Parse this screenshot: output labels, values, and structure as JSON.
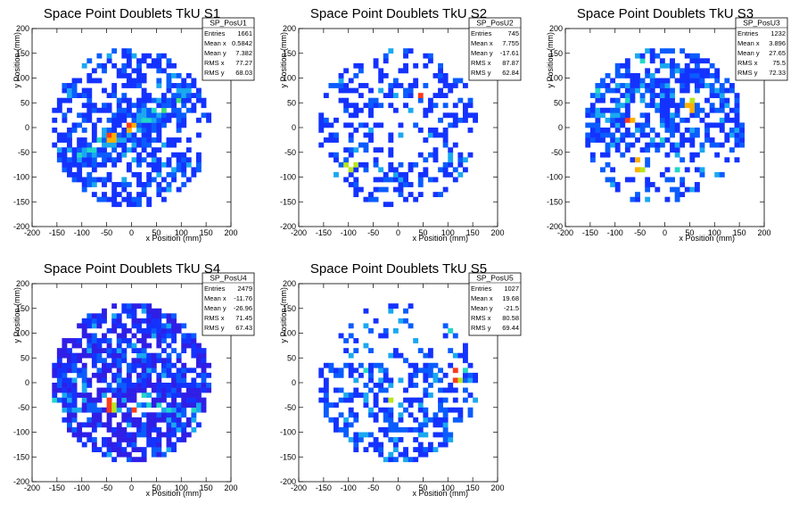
{
  "chart_data": [
    {
      "type": "heatmap",
      "title": "Space Point Doublets TkU S1",
      "xlabel": "x Position (mm)",
      "ylabel": "y Position (mm)",
      "xlim": [
        -200,
        200
      ],
      "ylim": [
        -200,
        200
      ],
      "xticks": [
        -200,
        -150,
        -100,
        -50,
        0,
        50,
        100,
        150,
        200
      ],
      "yticks": [
        -200,
        -150,
        -100,
        -50,
        0,
        50,
        100,
        150,
        200
      ],
      "stats": {
        "name": "SP_PosU1",
        "rows": [
          [
            "Entries",
            "1661"
          ],
          [
            "Mean x",
            "0.5842"
          ],
          [
            "Mean y",
            "7.382"
          ],
          [
            "RMS x",
            "77.27"
          ],
          [
            "RMS y",
            "68.03"
          ]
        ]
      },
      "pattern": "diagonal",
      "hotspots": [
        [
          -2,
          5
        ],
        [
          -40,
          -20
        ]
      ],
      "seed": 11
    },
    {
      "type": "heatmap",
      "title": "Space Point Doublets TkU S2",
      "xlabel": "x Position (mm)",
      "ylabel": "y Position (mm)",
      "xlim": [
        -200,
        200
      ],
      "ylim": [
        -200,
        200
      ],
      "xticks": [
        -200,
        -150,
        -100,
        -50,
        0,
        50,
        100,
        150,
        200
      ],
      "yticks": [
        -200,
        -150,
        -100,
        -50,
        0,
        50,
        100,
        150,
        200
      ],
      "stats": {
        "name": "SP_PosU2",
        "rows": [
          [
            "Entries",
            "745"
          ],
          [
            "Mean x",
            "7.755"
          ],
          [
            "Mean y",
            "-17.61"
          ],
          [
            "RMS x",
            "87.87"
          ],
          [
            "RMS y",
            "62.84"
          ]
        ]
      },
      "pattern": "sparse",
      "hotspots": [
        [
          45,
          75
        ],
        [
          -95,
          -75
        ]
      ],
      "seed": 23
    },
    {
      "type": "heatmap",
      "title": "Space Point Doublets TkU S3",
      "xlabel": "x Position (mm)",
      "ylabel": "y Position (mm)",
      "xlim": [
        -200,
        200
      ],
      "ylim": [
        -200,
        200
      ],
      "xticks": [
        -200,
        -150,
        -100,
        -50,
        0,
        50,
        100,
        150,
        200
      ],
      "yticks": [
        -200,
        -150,
        -100,
        -50,
        0,
        50,
        100,
        150,
        200
      ],
      "stats": {
        "name": "SP_PosU3",
        "rows": [
          [
            "Entries",
            "1232"
          ],
          [
            "Mean x",
            "3.896"
          ],
          [
            "Mean y",
            "27.65"
          ],
          [
            "RMS x",
            "75.5"
          ],
          [
            "RMS y",
            "72.33"
          ]
        ]
      },
      "pattern": "upper",
      "hotspots": [
        [
          -65,
          15
        ],
        [
          -50,
          -75
        ],
        [
          50,
          45
        ]
      ],
      "seed": 37
    },
    {
      "type": "heatmap",
      "title": "Space Point Doublets TkU S4",
      "xlabel": "x Position (mm)",
      "ylabel": "y Position (mm)",
      "xlim": [
        -200,
        200
      ],
      "ylim": [
        -200,
        200
      ],
      "xticks": [
        -200,
        -150,
        -100,
        -50,
        0,
        50,
        100,
        150,
        200
      ],
      "yticks": [
        -200,
        -150,
        -100,
        -50,
        0,
        50,
        100,
        150,
        200
      ],
      "stats": {
        "name": "SP_PosU4",
        "rows": [
          [
            "Entries",
            "2479"
          ],
          [
            "Mean x",
            "-11.76"
          ],
          [
            "Mean y",
            "-26.96"
          ],
          [
            "RMS x",
            "71.45"
          ],
          [
            "RMS y",
            "67.43"
          ]
        ]
      },
      "pattern": "dense",
      "hotspots": [
        [
          -40,
          -45
        ],
        [
          10,
          -60
        ]
      ],
      "seed": 41
    },
    {
      "type": "heatmap",
      "title": "Space Point Doublets TkU S5",
      "xlabel": "x Position (mm)",
      "ylabel": "y Position (mm)",
      "xlim": [
        -200,
        200
      ],
      "ylim": [
        -200,
        200
      ],
      "xticks": [
        -200,
        -150,
        -100,
        -50,
        0,
        50,
        100,
        150,
        200
      ],
      "yticks": [
        -200,
        -150,
        -100,
        -50,
        0,
        50,
        100,
        150,
        200
      ],
      "stats": {
        "name": "SP_PosU5",
        "rows": [
          [
            "Entries",
            "1027"
          ],
          [
            "Mean x",
            "19.68"
          ],
          [
            "Mean y",
            "-21.5"
          ],
          [
            "RMS x",
            "80.58"
          ],
          [
            "RMS y",
            "69.44"
          ]
        ]
      },
      "pattern": "lower",
      "hotspots": [
        [
          120,
          15
        ],
        [
          -10,
          -40
        ]
      ],
      "seed": 53
    }
  ],
  "colors": {
    "background": "#ffffff",
    "palette": [
      "#2f1fe6",
      "#1432ff",
      "#0a5cff",
      "#1aa8f0",
      "#22d6c8",
      "#3ee07a",
      "#b8e61e",
      "#ffb000",
      "#ff3a1a"
    ]
  }
}
